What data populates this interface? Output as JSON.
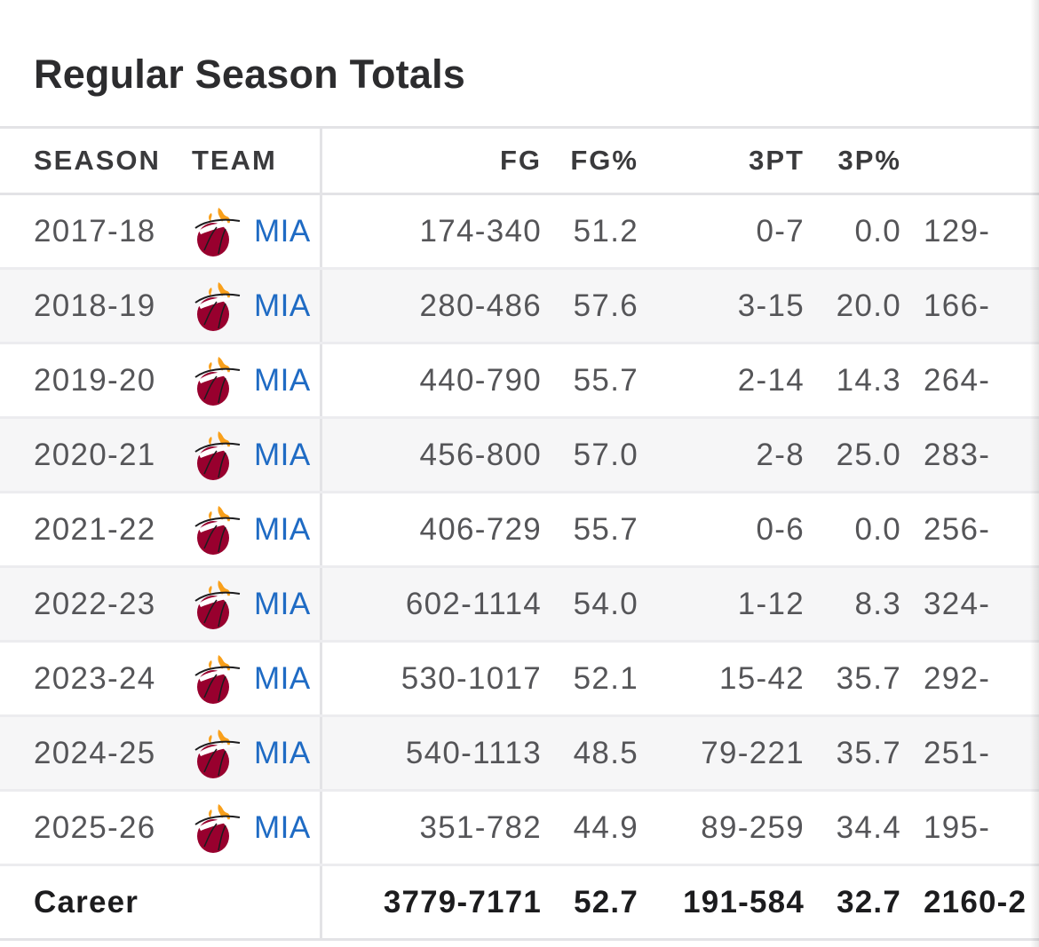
{
  "title": "Regular Season Totals",
  "colors": {
    "team_link": "#1f6bc4",
    "logo_red": "#98002e",
    "logo_flame": "#f9a01b"
  },
  "team_logo_icon": "miami-heat-logo-icon",
  "headers": {
    "season": "SEASON",
    "team": "TEAM",
    "fg": "FG",
    "fg_pct": "FG%",
    "three_pt": "3PT",
    "three_pct": "3P%"
  },
  "rows": [
    {
      "season": "2017-18",
      "team": "MIA",
      "fg": "174-340",
      "fg_pct": "51.2",
      "three_pt": "0-7",
      "three_pct": "0.0",
      "ft_partial": "129-"
    },
    {
      "season": "2018-19",
      "team": "MIA",
      "fg": "280-486",
      "fg_pct": "57.6",
      "three_pt": "3-15",
      "three_pct": "20.0",
      "ft_partial": "166-"
    },
    {
      "season": "2019-20",
      "team": "MIA",
      "fg": "440-790",
      "fg_pct": "55.7",
      "three_pt": "2-14",
      "three_pct": "14.3",
      "ft_partial": "264-"
    },
    {
      "season": "2020-21",
      "team": "MIA",
      "fg": "456-800",
      "fg_pct": "57.0",
      "three_pt": "2-8",
      "three_pct": "25.0",
      "ft_partial": "283-"
    },
    {
      "season": "2021-22",
      "team": "MIA",
      "fg": "406-729",
      "fg_pct": "55.7",
      "three_pt": "0-6",
      "three_pct": "0.0",
      "ft_partial": "256-"
    },
    {
      "season": "2022-23",
      "team": "MIA",
      "fg": "602-1114",
      "fg_pct": "54.0",
      "three_pt": "1-12",
      "three_pct": "8.3",
      "ft_partial": "324-"
    },
    {
      "season": "2023-24",
      "team": "MIA",
      "fg": "530-1017",
      "fg_pct": "52.1",
      "three_pt": "15-42",
      "three_pct": "35.7",
      "ft_partial": "292-"
    },
    {
      "season": "2024-25",
      "team": "MIA",
      "fg": "540-1113",
      "fg_pct": "48.5",
      "three_pt": "79-221",
      "three_pct": "35.7",
      "ft_partial": "251-"
    },
    {
      "season": "2025-26",
      "team": "MIA",
      "fg": "351-782",
      "fg_pct": "44.9",
      "three_pt": "89-259",
      "three_pct": "34.4",
      "ft_partial": "195-"
    }
  ],
  "career": {
    "label": "Career",
    "fg": "3779-7171",
    "fg_pct": "52.7",
    "three_pt": "191-584",
    "three_pct": "32.7",
    "ft_partial": "2160-2"
  }
}
